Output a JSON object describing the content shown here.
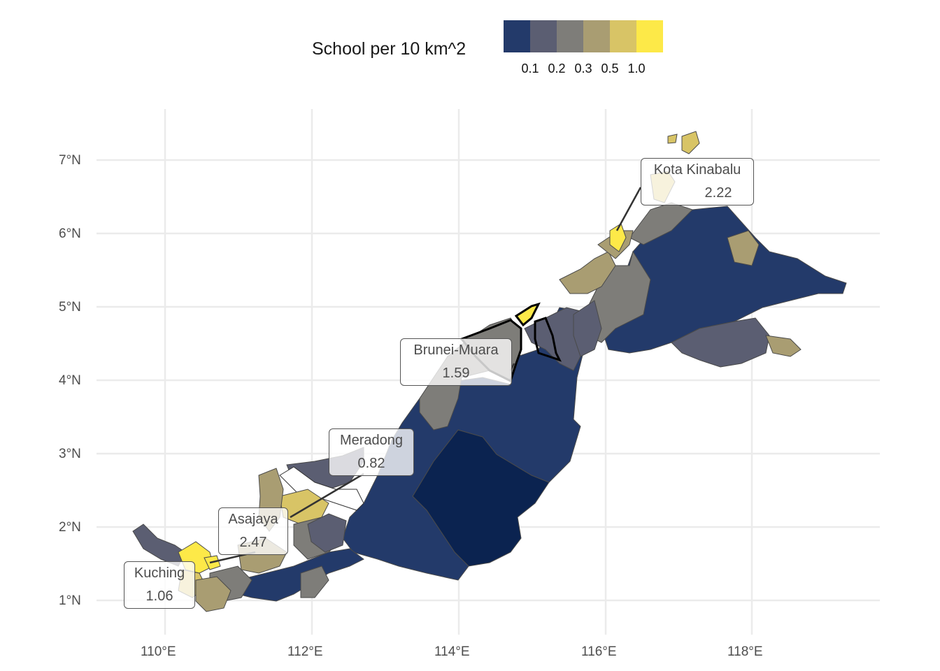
{
  "legend": {
    "title": "School per 10 km^2",
    "colors": [
      "#233A6A",
      "#5B5E72",
      "#7E7D79",
      "#A99D72",
      "#D8C466",
      "#FDE948"
    ],
    "ticks": [
      "0.1",
      "0.2",
      "0.3",
      "0.5",
      "1.0"
    ]
  },
  "axes": {
    "x_ticks": [
      "110°E",
      "112°E",
      "114°E",
      "116°E",
      "118°E"
    ],
    "y_ticks": [
      "7°N",
      "6°N",
      "5°N",
      "4°N",
      "3°N",
      "2°N",
      "1°N"
    ]
  },
  "callouts": [
    {
      "name": "Kota Kinabalu",
      "value": "2.22"
    },
    {
      "name": "Brunei-Muara",
      "value": "1.59"
    },
    {
      "name": "Meradong",
      "value": "0.82"
    },
    {
      "name": "Asajaya",
      "value": "2.47"
    },
    {
      "name": "Kuching",
      "value": "1.06"
    }
  ],
  "colors": {
    "grid": "#ebebeb",
    "border": "#4a4a4a",
    "dark_navy": "#0B2350"
  }
}
